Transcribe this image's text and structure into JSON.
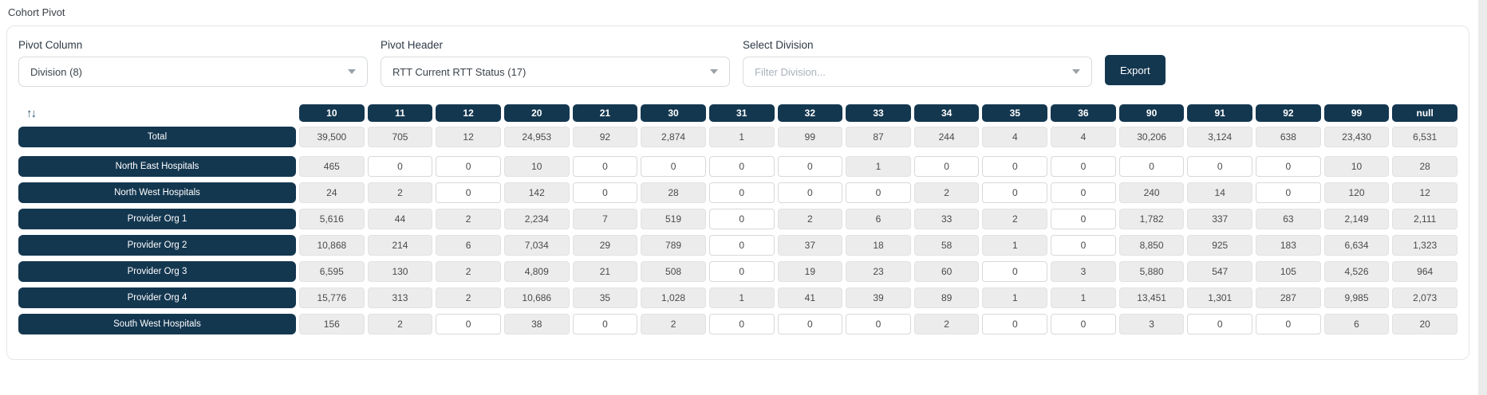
{
  "page_title": "Cohort Pivot",
  "controls": {
    "pivot_column": {
      "label": "Pivot Column",
      "value": "Division (8)"
    },
    "pivot_header": {
      "label": "Pivot Header",
      "value": "RTT Current RTT Status (17)"
    },
    "select_division": {
      "label": "Select Division",
      "placeholder": "Filter Division..."
    },
    "export_label": "Export"
  },
  "icons": {
    "sort": "↑↓"
  },
  "colors": {
    "navy": "#143750",
    "cell_gray": "#ececec",
    "cell_border": "#e2e2e2",
    "zero_cell_border": "#d8d8d8"
  },
  "pivot_table": {
    "columns": [
      "10",
      "11",
      "12",
      "20",
      "21",
      "30",
      "31",
      "32",
      "33",
      "34",
      "35",
      "36",
      "90",
      "91",
      "92",
      "99",
      "null"
    ],
    "total_row": {
      "label": "Total",
      "values": [
        "39,500",
        "705",
        "12",
        "24,953",
        "92",
        "2,874",
        "1",
        "99",
        "87",
        "244",
        "4",
        "4",
        "30,206",
        "3,124",
        "638",
        "23,430",
        "6,531"
      ]
    },
    "rows": [
      {
        "label": "North East Hospitals",
        "values": [
          "465",
          "0",
          "0",
          "10",
          "0",
          "0",
          "0",
          "0",
          "1",
          "0",
          "0",
          "0",
          "0",
          "0",
          "0",
          "10",
          "28"
        ]
      },
      {
        "label": "North West Hospitals",
        "values": [
          "24",
          "2",
          "0",
          "142",
          "0",
          "28",
          "0",
          "0",
          "0",
          "2",
          "0",
          "0",
          "240",
          "14",
          "0",
          "120",
          "12"
        ]
      },
      {
        "label": "Provider Org 1",
        "values": [
          "5,616",
          "44",
          "2",
          "2,234",
          "7",
          "519",
          "0",
          "2",
          "6",
          "33",
          "2",
          "0",
          "1,782",
          "337",
          "63",
          "2,149",
          "2,111"
        ]
      },
      {
        "label": "Provider Org 2",
        "values": [
          "10,868",
          "214",
          "6",
          "7,034",
          "29",
          "789",
          "0",
          "37",
          "18",
          "58",
          "1",
          "0",
          "8,850",
          "925",
          "183",
          "6,634",
          "1,323"
        ]
      },
      {
        "label": "Provider Org 3",
        "values": [
          "6,595",
          "130",
          "2",
          "4,809",
          "21",
          "508",
          "0",
          "19",
          "23",
          "60",
          "0",
          "3",
          "5,880",
          "547",
          "105",
          "4,526",
          "964"
        ]
      },
      {
        "label": "Provider Org 4",
        "values": [
          "15,776",
          "313",
          "2",
          "10,686",
          "35",
          "1,028",
          "1",
          "41",
          "39",
          "89",
          "1",
          "1",
          "13,451",
          "1,301",
          "287",
          "9,985",
          "2,073"
        ]
      },
      {
        "label": "South West Hospitals",
        "values": [
          "156",
          "2",
          "0",
          "38",
          "0",
          "2",
          "0",
          "0",
          "0",
          "2",
          "0",
          "0",
          "3",
          "0",
          "0",
          "6",
          "20"
        ]
      }
    ]
  }
}
